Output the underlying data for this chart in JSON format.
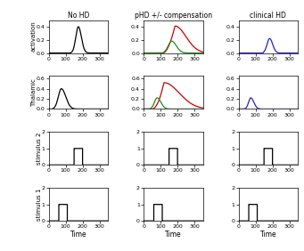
{
  "col_titles": [
    "No HD",
    "pHD +/- compensation",
    "clinical HD"
  ],
  "row_labels": [
    "activation",
    "Thalamic",
    "stimulus 2",
    "stimulus 1"
  ],
  "xlabel": "Time",
  "xlim": [
    0,
    350
  ],
  "xticks": [
    0,
    100,
    200,
    300
  ],
  "colors": {
    "noHD": "#000000",
    "pHD_red": "#cc0000",
    "pHD_green": "#228822",
    "clinHD": "#2222cc"
  },
  "activation_ylim": [
    0,
    0.5
  ],
  "activation_yticks": [
    0,
    0.2,
    0.4
  ],
  "thalamic_ylim": [
    0,
    0.65
  ],
  "thalamic_yticks": [
    0,
    0.2,
    0.4,
    0.6
  ],
  "stim_ylim": [
    0,
    2
  ],
  "stim_yticks": [
    0,
    1,
    2
  ]
}
